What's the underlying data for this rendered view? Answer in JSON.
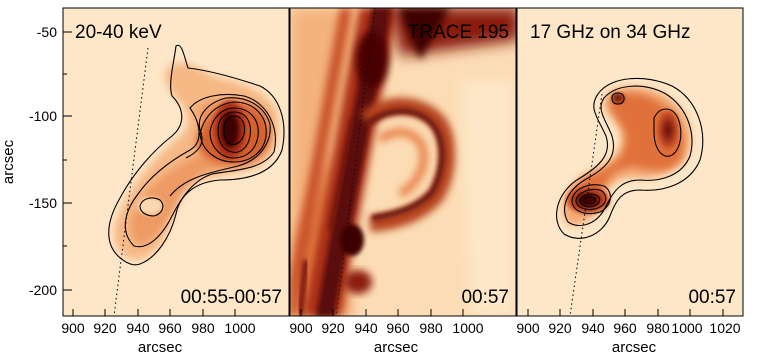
{
  "figure": {
    "y_axis_label": "arcsec",
    "y_ticks": [
      "-50",
      "-100",
      "-150",
      "-200"
    ],
    "panels": [
      {
        "title": "20-40 keV",
        "time": "00:55-00:57",
        "x_axis_label": "arcsec",
        "x_ticks": [
          "900",
          "920",
          "940",
          "960",
          "980",
          "1000"
        ]
      },
      {
        "title": "TRACE 195",
        "time": "00:57",
        "x_axis_label": "arcsec",
        "x_ticks": [
          "900",
          "920",
          "940",
          "960",
          "980",
          "1000"
        ]
      },
      {
        "title": "17 GHz on 34 GHz",
        "time": "00:57",
        "x_axis_label": "arcsec",
        "x_ticks": [
          "900",
          "920",
          "940",
          "960",
          "980",
          "1000",
          "1020"
        ]
      }
    ],
    "colors": {
      "background": "#fde7c8",
      "hot_dark": "#5e0a08",
      "hot_mid": "#c6431a",
      "hot_light": "#f4a46b"
    }
  }
}
